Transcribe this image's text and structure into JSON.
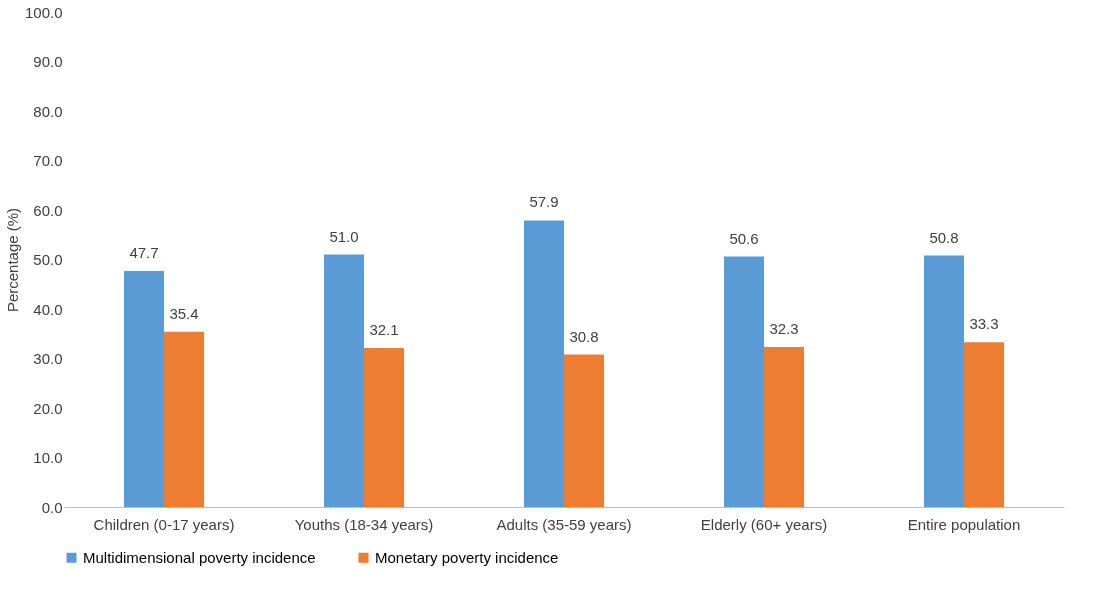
{
  "chart_data": {
    "type": "bar",
    "categories": [
      "Children (0-17 years)",
      "Youths (18-34 years)",
      "Adults (35-59 years)",
      "Elderly (60+ years)",
      "Entire population"
    ],
    "ylabel": "Percentage (%)",
    "ylim": [
      0,
      100
    ],
    "yticks": [
      {
        "value": 0,
        "label": "0.0"
      },
      {
        "value": 10,
        "label": "10.0"
      },
      {
        "value": 20,
        "label": "20.0"
      },
      {
        "value": 30,
        "label": "30.0"
      },
      {
        "value": 40,
        "label": "40.0"
      },
      {
        "value": 50,
        "label": "50.0"
      },
      {
        "value": 60,
        "label": "60.0"
      },
      {
        "value": 70,
        "label": "70.0"
      },
      {
        "value": 80,
        "label": "80.0"
      },
      {
        "value": 90,
        "label": "90.0"
      },
      {
        "value": 100,
        "label": "100.0"
      }
    ],
    "series": [
      {
        "name": "Multidimensional poverty incidence",
        "color": "#5b9bd5",
        "values": [
          47.7,
          51.0,
          57.9,
          50.6,
          50.8
        ],
        "value_labels": [
          "47.7",
          "51.0",
          "57.9",
          "50.6",
          "50.8"
        ]
      },
      {
        "name": "Monetary poverty incidence",
        "color": "#ed7d31",
        "values": [
          35.4,
          32.1,
          30.8,
          32.3,
          33.3
        ],
        "value_labels": [
          "35.4",
          "32.1",
          "30.8",
          "32.3",
          "33.3"
        ]
      }
    ],
    "grid": false,
    "legend": "bottom"
  }
}
